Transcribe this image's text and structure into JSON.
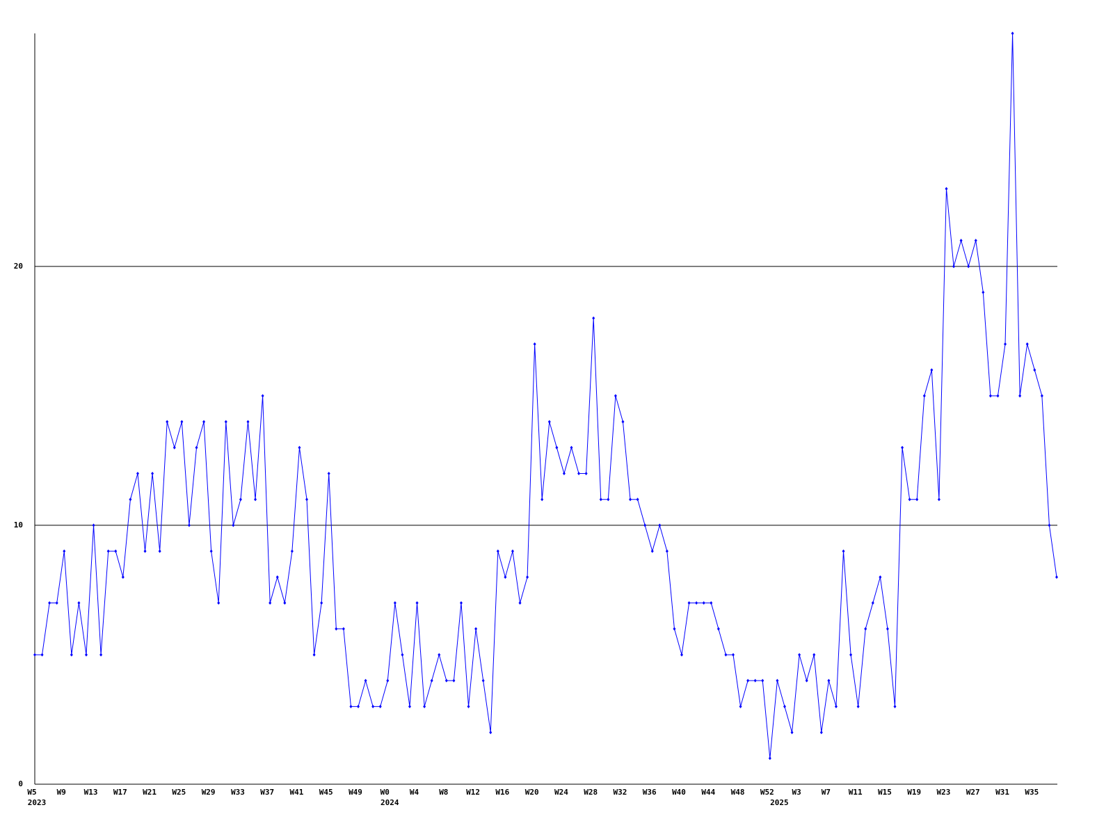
{
  "chart_data": {
    "type": "line",
    "categories": [
      "W5",
      null,
      null,
      null,
      "W9",
      null,
      null,
      null,
      "W13",
      null,
      null,
      null,
      "W17",
      null,
      null,
      null,
      "W21",
      null,
      null,
      null,
      "W25",
      null,
      null,
      null,
      "W29",
      null,
      null,
      null,
      "W33",
      null,
      null,
      null,
      "W37",
      null,
      null,
      null,
      "W41",
      null,
      null,
      null,
      "W45",
      null,
      null,
      null,
      "W49",
      null,
      null,
      null,
      "W0",
      null,
      null,
      null,
      "W4",
      null,
      null,
      null,
      "W8",
      null,
      null,
      null,
      "W12",
      null,
      null,
      null,
      "W16",
      null,
      null,
      null,
      "W20",
      null,
      null,
      null,
      "W24",
      null,
      null,
      null,
      "W28",
      null,
      null,
      null,
      "W32",
      null,
      null,
      null,
      "W36",
      null,
      null,
      null,
      "W40",
      null,
      null,
      null,
      "W44",
      null,
      null,
      null,
      "W48",
      null,
      null,
      null,
      "W52",
      null,
      null,
      null,
      "W3",
      null,
      null,
      null,
      "W7",
      null,
      null,
      null,
      "W11",
      null,
      null,
      null,
      "W15",
      null,
      null,
      null,
      "W19",
      null,
      null,
      null,
      "W23",
      null,
      null,
      null,
      "W27",
      null,
      null,
      null,
      "W31",
      null,
      null,
      null,
      "W35",
      null,
      null,
      null
    ],
    "category_years": [
      "2023",
      null,
      null,
      null,
      null,
      null,
      null,
      null,
      null,
      null,
      null,
      null,
      null,
      null,
      null,
      null,
      null,
      null,
      null,
      null,
      null,
      null,
      null,
      null,
      null,
      null,
      null,
      null,
      null,
      null,
      null,
      null,
      null,
      null,
      null,
      null,
      null,
      null,
      null,
      null,
      null,
      null,
      null,
      null,
      null,
      null,
      null,
      null,
      "2024",
      null,
      null,
      null,
      null,
      null,
      null,
      null,
      null,
      null,
      null,
      null,
      null,
      null,
      null,
      null,
      null,
      null,
      null,
      null,
      null,
      null,
      null,
      null,
      null,
      null,
      null,
      null,
      null,
      null,
      null,
      null,
      null,
      null,
      null,
      null,
      null,
      null,
      null,
      null,
      null,
      null,
      null,
      null,
      null,
      null,
      null,
      null,
      null,
      null,
      null,
      null,
      null,
      "2025",
      null,
      null,
      null,
      null,
      null,
      null,
      null,
      null,
      null,
      null,
      null,
      null,
      null,
      null,
      null,
      null,
      null,
      null,
      null,
      null,
      null,
      null,
      null,
      null,
      null,
      null,
      null,
      null,
      null,
      null,
      null,
      null,
      null,
      null,
      null,
      null,
      null,
      null
    ],
    "values": [
      5,
      5,
      7,
      7,
      9,
      5,
      7,
      5,
      10,
      5,
      9,
      9,
      8,
      11,
      12,
      9,
      12,
      9,
      14,
      13,
      14,
      10,
      13,
      14,
      9,
      7,
      14,
      10,
      11,
      14,
      11,
      15,
      7,
      8,
      7,
      9,
      13,
      11,
      5,
      7,
      12,
      6,
      6,
      3,
      3,
      4,
      3,
      3,
      4,
      7,
      5,
      3,
      7,
      3,
      4,
      5,
      4,
      4,
      7,
      3,
      6,
      4,
      2,
      9,
      8,
      9,
      7,
      8,
      17,
      11,
      14,
      13,
      12,
      13,
      12,
      12,
      18,
      11,
      11,
      15,
      14,
      11,
      11,
      10,
      9,
      10,
      9,
      6,
      5,
      7,
      7,
      7,
      7,
      6,
      5,
      5,
      3,
      4,
      4,
      4,
      1,
      4,
      3,
      2,
      5,
      4,
      5,
      2,
      4,
      3,
      9,
      5,
      3,
      6,
      7,
      8,
      6,
      3,
      13,
      11,
      11,
      15,
      16,
      11,
      23,
      20,
      21,
      20,
      21,
      19,
      15,
      15,
      17,
      29,
      15,
      17,
      16,
      15,
      10,
      8
    ],
    "color": "#0000ff",
    "ylim": [
      0,
      29
    ],
    "yticks": [
      0,
      10,
      20
    ],
    "grid": true
  }
}
